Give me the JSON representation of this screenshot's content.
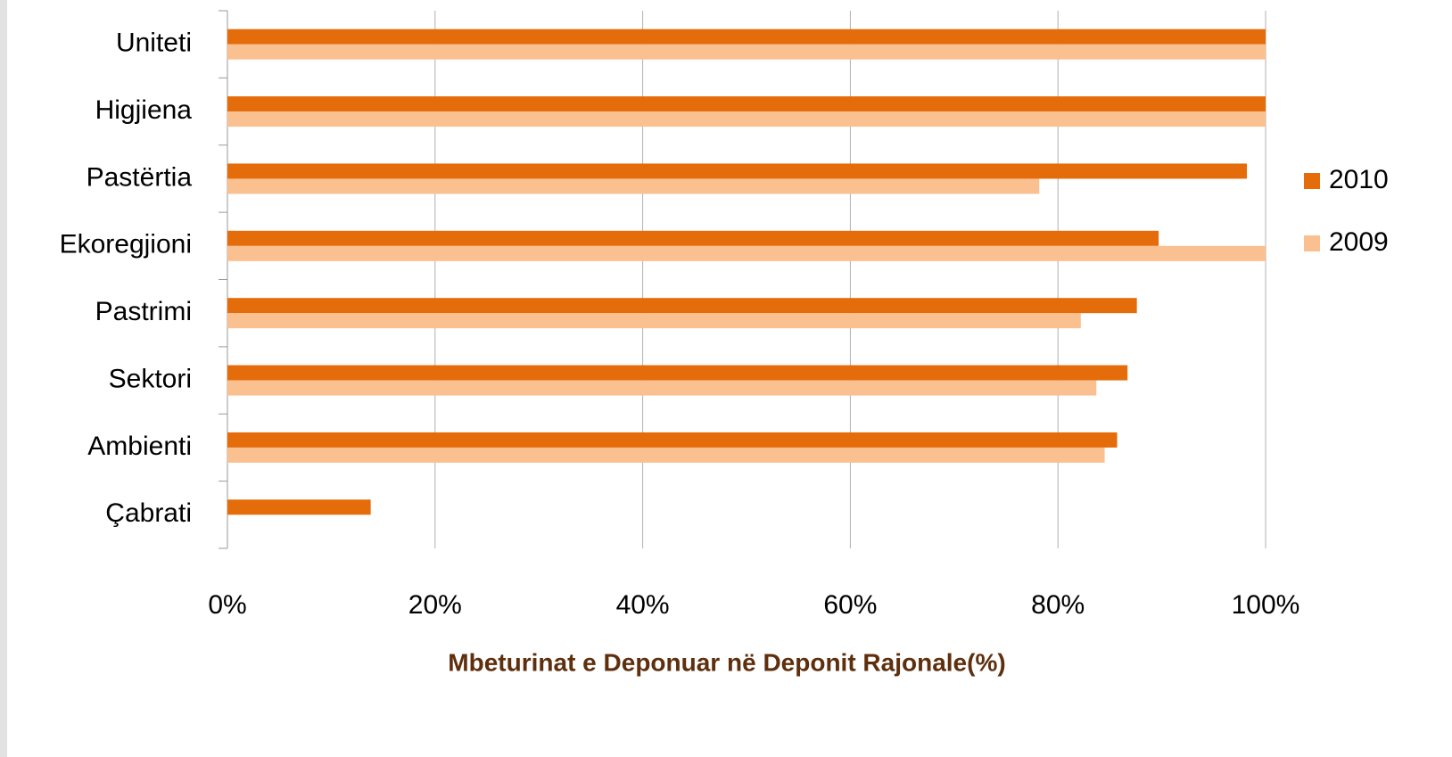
{
  "chart_data": {
    "type": "bar",
    "orientation": "horizontal",
    "x_label": "Mbeturinat e Deponuar në Deponit Rajonale(%)",
    "categories": [
      "Uniteti",
      "Higjiena",
      "Pastërtia",
      "Ekoregjioni",
      "Pastrimi",
      "Sektori",
      "Ambienti",
      "Çabrati"
    ],
    "series": [
      {
        "name": "2010",
        "color": "#e46c0a",
        "values": [
          100,
          100,
          98.2,
          89.7,
          87.6,
          86.7,
          85.7,
          13.8
        ]
      },
      {
        "name": "2009",
        "color": "#fac090",
        "values": [
          100,
          100,
          78.2,
          100,
          82.2,
          83.7,
          84.5,
          0
        ]
      }
    ],
    "xlim": [
      0,
      100
    ],
    "xticks": [
      {
        "value": 0,
        "label": "0%"
      },
      {
        "value": 20,
        "label": "20%"
      },
      {
        "value": 40,
        "label": "40%"
      },
      {
        "value": 60,
        "label": "60%"
      },
      {
        "value": 80,
        "label": "80%"
      },
      {
        "value": 100,
        "label": "100%"
      }
    ],
    "grid": true,
    "legend": "right"
  }
}
